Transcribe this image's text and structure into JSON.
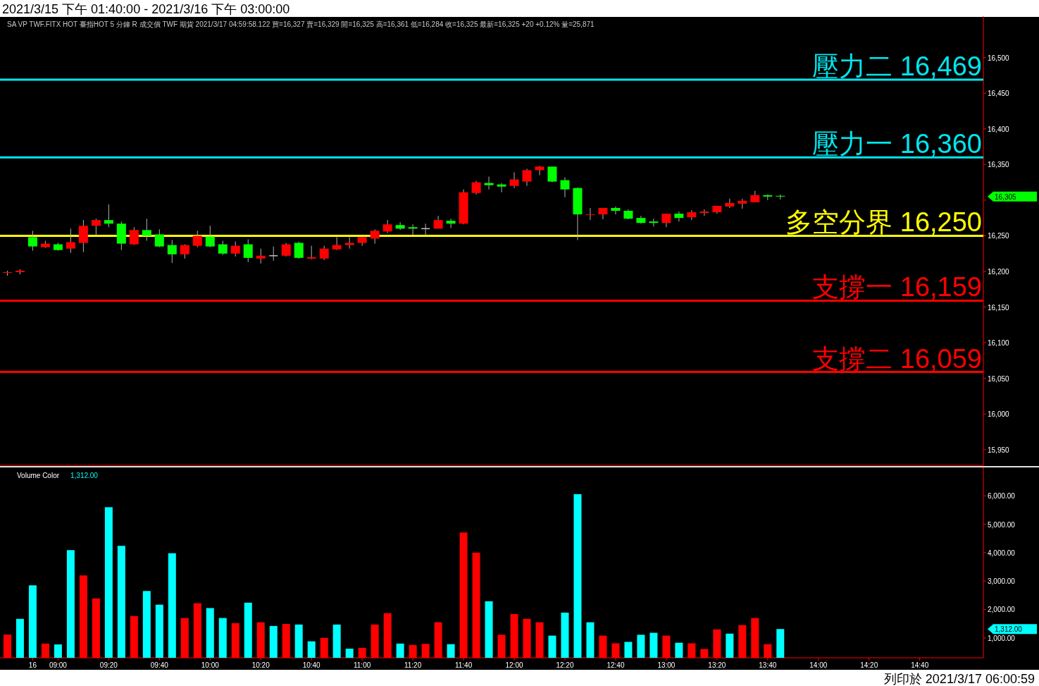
{
  "chart_data": [
    {
      "type": "candlestick",
      "title": "2021/3/15 下午 01:40:00 - 2021/3/16 下午 03:00:00",
      "subtitle": "SA  VP  TWF.FITX HOT  臺指HOT  5 分鐘  R  成交價  TWF  期貨  2021/3/17  04:59:58.122  買=16,327  賣=16,329  開=16,325  高=16,361  低=16,284  收=16,325  最新=16,325  +20  +0.12%  量=25,871",
      "categories": [
        null,
        null,
        null,
        null,
        null,
        null,
        null,
        null,
        null,
        null,
        null,
        null,
        null,
        null,
        null,
        null,
        null,
        null,
        null,
        null,
        null,
        null,
        null,
        null,
        null,
        null,
        null,
        null,
        null,
        null,
        null,
        null,
        null,
        null,
        null,
        null,
        null,
        null,
        null,
        null,
        null,
        null,
        null,
        null,
        null,
        null,
        null,
        null,
        null,
        null,
        null,
        null,
        null,
        null,
        null,
        null,
        null,
        null,
        null,
        null,
        null,
        null,
        null,
        null,
        null,
        null,
        null,
        null,
        null,
        null,
        null,
        null,
        null,
        null,
        null,
        null,
        null
      ],
      "ohlc": [
        [
          16198,
          16201,
          16194,
          16199
        ],
        [
          16199,
          16203,
          16196,
          16201
        ],
        [
          16248,
          16257,
          16229,
          16235
        ],
        [
          16234,
          16243,
          16233,
          16239
        ],
        [
          16238,
          16240,
          16229,
          16230
        ],
        [
          16232,
          16260,
          16226,
          16241
        ],
        [
          16240,
          16272,
          16227,
          16264
        ],
        [
          16264,
          16274,
          16250,
          16272
        ],
        [
          16272,
          16294,
          16262,
          16267
        ],
        [
          16267,
          16270,
          16230,
          16239
        ],
        [
          16238,
          16262,
          16237,
          16258
        ],
        [
          16258,
          16274,
          16243,
          16250
        ],
        [
          16252,
          16259,
          16234,
          16235
        ],
        [
          16237,
          16244,
          16212,
          16224
        ],
        [
          16224,
          16238,
          16218,
          16237
        ],
        [
          16236,
          16257,
          16234,
          16250
        ],
        [
          16249,
          16264,
          16234,
          16235
        ],
        [
          16238,
          16243,
          16223,
          16225
        ],
        [
          16225,
          16242,
          16221,
          16236
        ],
        [
          16238,
          16245,
          16213,
          16219
        ],
        [
          16218,
          16232,
          16211,
          16222
        ],
        [
          16222,
          16235,
          16215,
          16222
        ],
        [
          16222,
          16240,
          16221,
          16238
        ],
        [
          16240,
          16242,
          16218,
          16219
        ],
        [
          16218,
          16236,
          16217,
          16220
        ],
        [
          16218,
          16236,
          16216,
          16232
        ],
        [
          16231,
          16248,
          16230,
          16237
        ],
        [
          16237,
          16248,
          16232,
          16240
        ],
        [
          16240,
          16249,
          16236,
          16248
        ],
        [
          16246,
          16259,
          16239,
          16257
        ],
        [
          16256,
          16272,
          16254,
          16266
        ],
        [
          16265,
          16269,
          16258,
          16260
        ],
        [
          16262,
          16266,
          16251,
          16260
        ],
        [
          16260,
          16267,
          16250,
          16260
        ],
        [
          16260,
          16278,
          16260,
          16272
        ],
        [
          16271,
          16274,
          16261,
          16267
        ],
        [
          16267,
          16315,
          16266,
          16311
        ],
        [
          16310,
          16327,
          16308,
          16325
        ],
        [
          16324,
          16333,
          16315,
          16321
        ],
        [
          16322,
          16324,
          16311,
          16319
        ],
        [
          16320,
          16339,
          16317,
          16329
        ],
        [
          16326,
          16344,
          16320,
          16342
        ],
        [
          16342,
          16348,
          16335,
          16347
        ],
        [
          16347,
          16347,
          16325,
          16326
        ],
        [
          16328,
          16332,
          16304,
          16315
        ],
        [
          16317,
          16318,
          16244,
          16280
        ],
        [
          16279,
          16289,
          16272,
          16280
        ],
        [
          16280,
          16289,
          16273,
          16289
        ],
        [
          16289,
          16291,
          16280,
          16285
        ],
        [
          16285,
          16287,
          16273,
          16274
        ],
        [
          16275,
          16278,
          16267,
          16268
        ],
        [
          16270,
          16274,
          16263,
          16268
        ],
        [
          16268,
          16281,
          16262,
          16281
        ],
        [
          16281,
          16284,
          16270,
          16275
        ],
        [
          16276,
          16286,
          16272,
          16283
        ],
        [
          16282,
          16287,
          16278,
          16284
        ],
        [
          16283,
          16292,
          16281,
          16292
        ],
        [
          16291,
          16302,
          16289,
          16296
        ],
        [
          16295,
          16302,
          16288,
          16299
        ],
        [
          16297,
          16313,
          16297,
          16307
        ],
        [
          16307,
          16308,
          16300,
          16305
        ],
        [
          16306,
          16308,
          16301,
          16305
        ],
        null,
        null,
        null,
        null,
        null,
        null,
        null,
        null,
        null,
        null,
        null,
        null,
        null,
        null,
        null
      ],
      "colors": [
        "#ff0000",
        "#ff0000",
        "#00ff00",
        "#ff0000",
        "#00ff00",
        "#ff0000",
        "#ff0000",
        "#ff0000",
        "#00ff00",
        "#00ff00",
        "#ff0000",
        "#00ff00",
        "#00ff00",
        "#00ff00",
        "#ff0000",
        "#ff0000",
        "#00ff00",
        "#00ff00",
        "#ff0000",
        "#00ff00",
        "#ff0000",
        "#c0c0c0",
        "#ff0000",
        "#00ff00",
        "#ff0000",
        "#ff0000",
        "#ff0000",
        "#ff0000",
        "#ff0000",
        "#ff0000",
        "#ff0000",
        "#00ff00",
        "#00ff00",
        "#c0c0c0",
        "#ff0000",
        "#00ff00",
        "#ff0000",
        "#ff0000",
        "#00ff00",
        "#00ff00",
        "#ff0000",
        "#ff0000",
        "#ff0000",
        "#00ff00",
        "#00ff00",
        "#00ff00",
        "#ff0000",
        "#ff0000",
        "#00ff00",
        "#00ff00",
        "#00ff00",
        "#00ff00",
        "#ff0000",
        "#00ff00",
        "#ff0000",
        "#ff0000",
        "#ff0000",
        "#ff0000",
        "#ff0000",
        "#ff0000",
        "#00ff00",
        "#00ff00",
        null,
        null,
        null,
        null,
        null,
        null,
        null,
        null,
        null,
        null,
        null,
        null,
        null,
        null,
        null
      ],
      "ylim": [
        15928,
        16556
      ],
      "yticks": [
        {
          "value": 15950,
          "label": "15,950"
        },
        {
          "value": 16000,
          "label": "16,000"
        },
        {
          "value": 16050,
          "label": "16,050"
        },
        {
          "value": 16100,
          "label": "16,100"
        },
        {
          "value": 16150,
          "label": "16,150"
        },
        {
          "value": 16200,
          "label": "16,200"
        },
        {
          "value": 16250,
          "label": "16,250"
        },
        {
          "value": 16300,
          "label": null
        },
        {
          "value": 16350,
          "label": "16,350"
        },
        {
          "value": 16400,
          "label": "16,400"
        },
        {
          "value": 16450,
          "label": "16,450"
        },
        {
          "value": 16500,
          "label": "16,500"
        }
      ],
      "ref_lines": [
        {
          "axis": "y",
          "value": 16469,
          "label": "壓力二 16,469",
          "color": "#00e5ee"
        },
        {
          "axis": "y",
          "value": 16360,
          "label": "壓力一 16,360",
          "color": "#00e5ee"
        },
        {
          "axis": "y",
          "value": 16250,
          "label": "多空分界 16,250",
          "color": "#ffff00"
        },
        {
          "axis": "y",
          "value": 16159,
          "label": "支撐一 16,159",
          "color": "#ff0000"
        },
        {
          "axis": "y",
          "value": 16059,
          "label": "支撐二 16,059",
          "color": "#ff0000"
        }
      ],
      "annotations": [
        "16,305"
      ]
    },
    {
      "type": "bar",
      "title": "Volume Color",
      "categories": [
        null,
        null,
        "16",
        null,
        "09:00",
        null,
        null,
        null,
        "09:20",
        null,
        null,
        null,
        "09:40",
        null,
        null,
        null,
        "10:00",
        null,
        null,
        null,
        "10:20",
        null,
        null,
        null,
        "10:40",
        null,
        null,
        null,
        "11:00",
        null,
        null,
        null,
        "11:20",
        null,
        null,
        null,
        "11:40",
        null,
        null,
        null,
        "12:00",
        null,
        null,
        null,
        "12:20",
        null,
        null,
        null,
        "12:40",
        null,
        null,
        null,
        "13:00",
        null,
        null,
        null,
        "13:20",
        null,
        null,
        null,
        "13:40",
        null,
        null,
        null,
        "14:00",
        null,
        null,
        null,
        "14:20",
        null,
        null,
        null,
        "14:40",
        null,
        null,
        null,
        null
      ],
      "values": [
        1120,
        1670,
        2850,
        800,
        770,
        4090,
        3200,
        2390,
        5600,
        4240,
        1770,
        2650,
        2170,
        3980,
        1700,
        2220,
        2050,
        1700,
        1520,
        2240,
        1550,
        1420,
        1490,
        1470,
        880,
        1000,
        1470,
        620,
        650,
        1470,
        1870,
        800,
        750,
        790,
        1550,
        780,
        4710,
        4000,
        2290,
        1110,
        1840,
        1670,
        1550,
        1080,
        1890,
        6060,
        1550,
        1080,
        810,
        860,
        1110,
        1180,
        1080,
        830,
        810,
        610,
        1300,
        1150,
        1450,
        1700,
        780,
        1312,
        null,
        null,
        null,
        null,
        null,
        null,
        null,
        null,
        null,
        null,
        null,
        null,
        null,
        null,
        null
      ],
      "colors": [
        "#ff0000",
        "#00ffff",
        "#00ffff",
        "#ff0000",
        "#00ffff",
        "#00ffff",
        "#ff0000",
        "#ff0000",
        "#00ffff",
        "#00ffff",
        "#ff0000",
        "#00ffff",
        "#00ffff",
        "#00ffff",
        "#ff0000",
        "#ff0000",
        "#00ffff",
        "#00ffff",
        "#ff0000",
        "#00ffff",
        "#ff0000",
        "#00ffff",
        "#ff0000",
        "#00ffff",
        "#00ffff",
        "#ff0000",
        "#00ffff",
        "#00ffff",
        "#ff0000",
        "#ff0000",
        "#ff0000",
        "#00ffff",
        "#ff0000",
        "#ff0000",
        "#ff0000",
        "#00ffff",
        "#ff0000",
        "#ff0000",
        "#00ffff",
        "#ff0000",
        "#ff0000",
        "#ff0000",
        "#ff0000",
        "#00ffff",
        "#00ffff",
        "#00ffff",
        "#00ffff",
        "#ff0000",
        "#ff0000",
        "#00ffff",
        "#00ffff",
        "#00ffff",
        "#ff0000",
        "#00ffff",
        "#ff0000",
        "#ff0000",
        "#ff0000",
        "#00ffff",
        "#ff0000",
        "#ff0000",
        "#ff0000",
        "#00ffff",
        null,
        null,
        null,
        null,
        null,
        null,
        null,
        null,
        null,
        null,
        null,
        null,
        null,
        null,
        null
      ],
      "ylim": [
        300,
        6950
      ],
      "yticks": [
        {
          "value": 1000,
          "label": "1,000.00"
        },
        {
          "value": 2000,
          "label": "2,000.00"
        },
        {
          "value": 3000,
          "label": "3,000.00"
        },
        {
          "value": 4000,
          "label": "4,000.00"
        },
        {
          "value": 5000,
          "label": "5,000.00"
        },
        {
          "value": 6000,
          "label": "6,000.00"
        }
      ],
      "annotations": [
        "1,312.00",
        "1,312.00",
        "列印於 2021/3/17 06:00:59"
      ]
    }
  ]
}
